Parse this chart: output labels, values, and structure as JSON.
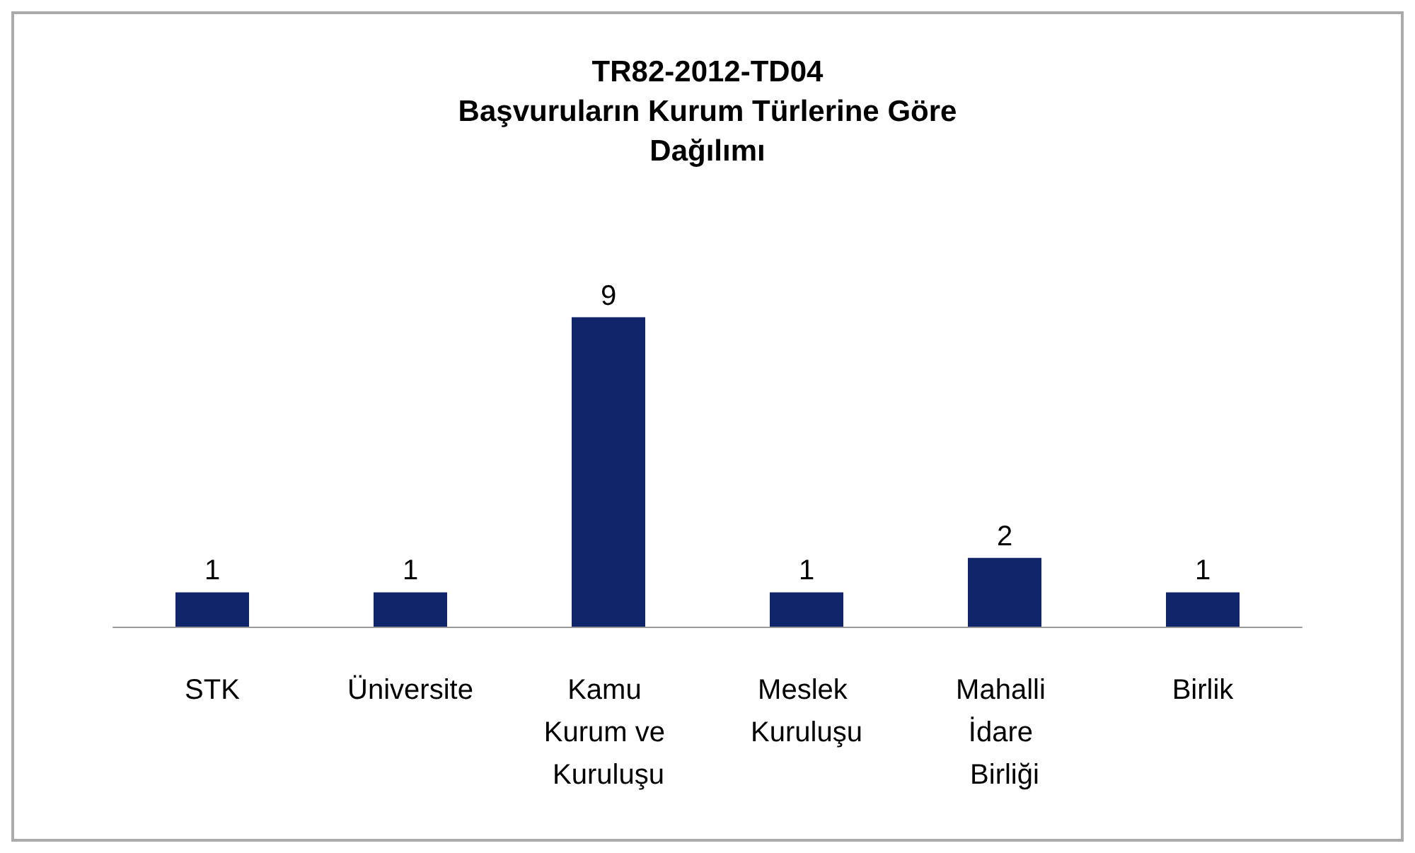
{
  "chart_data": {
    "type": "bar",
    "title": "TR82-2012-TD04\nBaşvuruların Kurum Türlerine Göre\nDağılımı",
    "categories": [
      "STK",
      "Üniversite",
      "Kamu Kurum ve Kuruluşu",
      "Meslek Kuruluşu",
      "Mahalli İdare Birliği",
      "Birlik"
    ],
    "values": [
      1,
      1,
      9,
      1,
      2,
      1
    ],
    "color": "#10256a",
    "data_labels": true
  }
}
